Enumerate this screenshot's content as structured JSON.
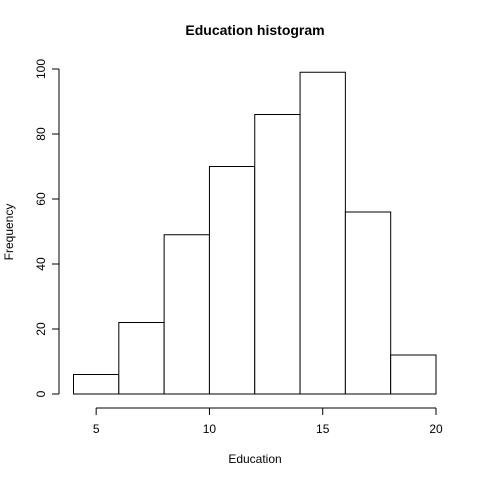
{
  "chart_data": {
    "type": "bar",
    "title": "Education histogram",
    "xlabel": "Education",
    "ylabel": "Frequency",
    "bins": [
      {
        "start": 4,
        "end": 6,
        "count": 6
      },
      {
        "start": 6,
        "end": 8,
        "count": 22
      },
      {
        "start": 8,
        "end": 10,
        "count": 49
      },
      {
        "start": 10,
        "end": 12,
        "count": 70
      },
      {
        "start": 12,
        "end": 14,
        "count": 86
      },
      {
        "start": 14,
        "end": 16,
        "count": 99
      },
      {
        "start": 16,
        "end": 18,
        "count": 56
      },
      {
        "start": 18,
        "end": 20,
        "count": 12
      }
    ],
    "xlim": [
      4,
      20
    ],
    "ylim": [
      0,
      100
    ],
    "xticks": [
      5,
      10,
      15,
      20
    ],
    "yticks": [
      0,
      20,
      40,
      60,
      80,
      100
    ],
    "grid": false,
    "colors": {
      "bar_fill": "#ffffff",
      "bar_stroke": "#000000",
      "background": "#ffffff"
    }
  }
}
